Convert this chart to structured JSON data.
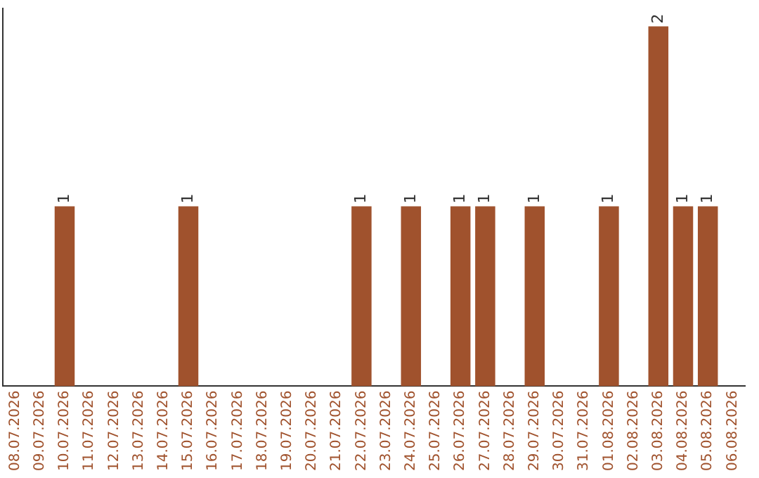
{
  "chart_data": {
    "type": "bar",
    "categories": [
      "08.07.2026",
      "09.07.2026",
      "10.07.2026",
      "11.07.2026",
      "12.07.2026",
      "13.07.2026",
      "14.07.2026",
      "15.07.2026",
      "16.07.2026",
      "17.07.2026",
      "18.07.2026",
      "19.07.2026",
      "20.07.2026",
      "21.07.2026",
      "22.07.2026",
      "23.07.2026",
      "24.07.2026",
      "25.07.2026",
      "26.07.2026",
      "27.07.2026",
      "28.07.2026",
      "29.07.2026",
      "30.07.2026",
      "31.07.2026",
      "01.08.2026",
      "02.08.2026",
      "03.08.2026",
      "04.08.2026",
      "05.08.2026",
      "06.08.2026"
    ],
    "values": [
      0,
      0,
      1,
      0,
      0,
      0,
      0,
      1,
      0,
      0,
      0,
      0,
      0,
      0,
      1,
      0,
      1,
      0,
      1,
      1,
      0,
      1,
      0,
      0,
      1,
      0,
      2,
      1,
      1,
      0
    ],
    "value_labels": [
      null,
      null,
      "1",
      null,
      null,
      null,
      null,
      "1",
      null,
      null,
      null,
      null,
      null,
      null,
      "1",
      null,
      "1",
      null,
      "1",
      "1",
      null,
      "1",
      null,
      null,
      "1",
      null,
      "2",
      "1",
      "1",
      null
    ],
    "color": "#a0522d",
    "ylim": [
      0,
      2.1
    ],
    "tick_labels": "x",
    "grid": false,
    "legend": false
  }
}
